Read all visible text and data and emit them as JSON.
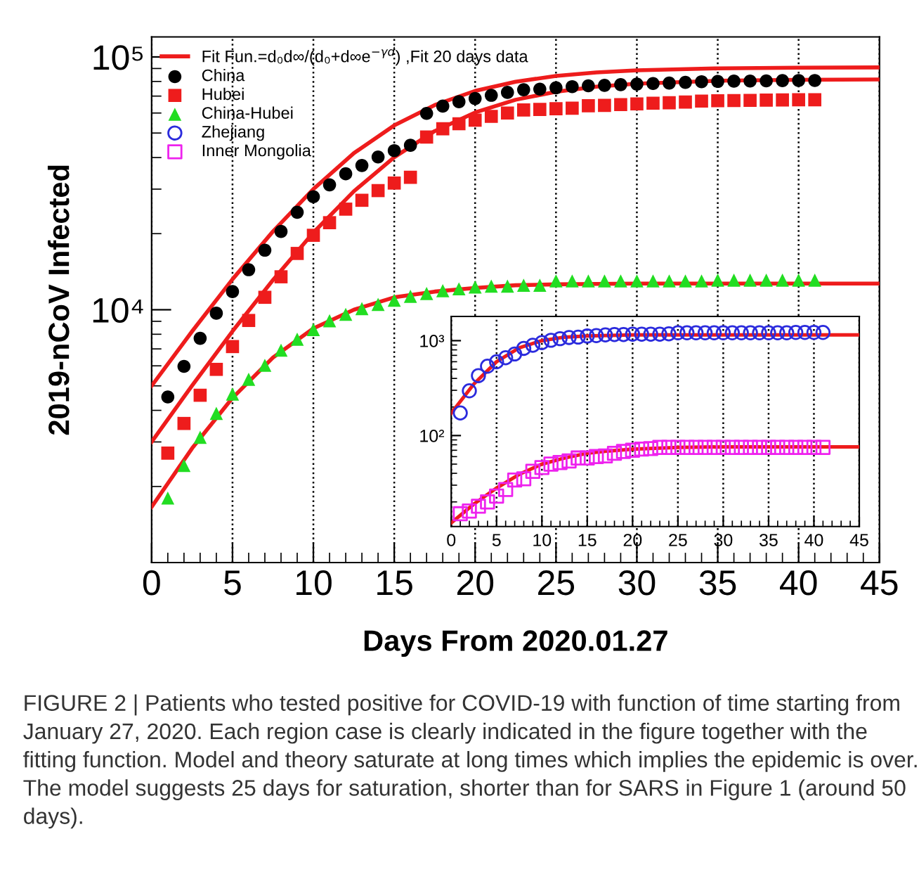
{
  "chart_data": [
    {
      "type": "scatter",
      "xlabel": "Days From 2020.01.27",
      "ylabel": "2019-nCoV Infected",
      "log": "y",
      "xlim": [
        0,
        45
      ],
      "ylim": [
        1000,
        120000
      ],
      "xticks": [
        0,
        5,
        10,
        15,
        20,
        25,
        30,
        35,
        40,
        45
      ],
      "yticks": [
        {
          "value": 10000,
          "label": "10⁴"
        },
        {
          "value": 100000,
          "label": "10⁵"
        }
      ],
      "grid": "x",
      "legend": "top left",
      "x": [
        1,
        2,
        3,
        4,
        5,
        6,
        7,
        8,
        9,
        10,
        11,
        12,
        13,
        14,
        15,
        16,
        17,
        18,
        19,
        20,
        21,
        22,
        23,
        24,
        25,
        26,
        27,
        28,
        29,
        30,
        31,
        32,
        33,
        34,
        35,
        36,
        37,
        38,
        39,
        40,
        41
      ],
      "series": [
        {
          "name": "Fit Fun.=d₀d∞/(d₀+d∞e$^{−γd}$) ,Fit 20 days data",
          "type": "line",
          "color": "#ee1c1c",
          "line_style": "solid",
          "marker": "none",
          "x": [
            0,
            2.5,
            5,
            7.5,
            10,
            12.5,
            15,
            17.5,
            20,
            22.5,
            25,
            27.5,
            30,
            35,
            40,
            45
          ],
          "values": [
            5000,
            8210,
            13200,
            20400,
            30000,
            41600,
            53600,
            64500,
            73400,
            79800,
            84100,
            86800,
            88500,
            90100,
            90700,
            90900
          ]
        },
        {
          "type": "line",
          "color": "#ee1c1c",
          "line_style": "solid",
          "marker": "none",
          "x": [
            0,
            2.5,
            5,
            7.5,
            10,
            12.5,
            15,
            17.5,
            20,
            22.5,
            25,
            27.5,
            30,
            35,
            40,
            45
          ],
          "values": [
            3000,
            5010,
            8220,
            13100,
            20200,
            29400,
            40100,
            50900,
            60300,
            67700,
            72800,
            76300,
            78400,
            80500,
            81200,
            81500
          ]
        },
        {
          "type": "line",
          "color": "#ee1c1c",
          "line_style": "solid",
          "marker": "none",
          "x": [
            0,
            2.5,
            5,
            7.5,
            10,
            12.5,
            15,
            17.5,
            20,
            22.5,
            25,
            27.5,
            30,
            35,
            40,
            45
          ],
          "values": [
            1660,
            2830,
            4480,
            6470,
            8440,
            10000,
            11200,
            11800,
            12200,
            12500,
            12600,
            12650,
            12700,
            12700,
            12700,
            12700
          ]
        },
        {
          "name": "China",
          "color": "#000000",
          "marker": "circle",
          "values": [
            4520,
            5970,
            7710,
            9690,
            11800,
            14400,
            17200,
            20400,
            24300,
            28000,
            31200,
            34500,
            37200,
            40200,
            42600,
            44700,
            59800,
            63900,
            66500,
            68500,
            70500,
            72400,
            74200,
            74600,
            75500,
            76300,
            76900,
            77200,
            77700,
            78100,
            78500,
            78800,
            79300,
            79800,
            80000,
            80200,
            80300,
            80400,
            80600,
            80700,
            80700
          ]
        },
        {
          "name": "Hubei",
          "color": "#ee1c1c",
          "marker": "square",
          "values": [
            2710,
            3550,
            4590,
            5810,
            7150,
            9070,
            11200,
            13500,
            16700,
            19700,
            22100,
            25000,
            27100,
            29600,
            31700,
            33400,
            48200,
            52000,
            54400,
            56200,
            58200,
            60000,
            61700,
            62000,
            62400,
            62700,
            64100,
            64300,
            64800,
            65200,
            65600,
            65900,
            66300,
            66900,
            67100,
            67200,
            67300,
            67500,
            67600,
            67700,
            67700
          ]
        },
        {
          "name": "China-Hubei",
          "color": "#22dd22",
          "marker": "triangle",
          "values": [
            1800,
            2420,
            3130,
            3890,
            4640,
            5310,
            6030,
            6920,
            7650,
            8350,
            9050,
            9590,
            10100,
            10500,
            10900,
            11300,
            11600,
            11900,
            12100,
            12300,
            12400,
            12400,
            12500,
            12500,
            13000,
            13000,
            13000,
            13000,
            13000,
            13000,
            13000,
            13000,
            13000,
            13000,
            13100,
            13100,
            13100,
            13100,
            13100,
            13100,
            13100
          ]
        }
      ],
      "annotations": [
        "FIGURE 2 | Patients who tested positive for COVID-19 with function of time starting from January 27, 2020. Each region case is clearly indicated in the figure together with the fitting function. Model and theory saturate at long times which implies the epidemic is over. The model suggests 25 days for saturation, shorter than for SARS in Figure 1 (around 50 days)."
      ]
    },
    {
      "type": "scatter",
      "log": "y",
      "xlim": [
        0,
        45
      ],
      "ylim": [
        11,
        1800
      ],
      "xticks": [
        0,
        5,
        10,
        15,
        20,
        25,
        30,
        35,
        40,
        45
      ],
      "yticks": [
        {
          "value": 100,
          "label": "10²"
        },
        {
          "value": 1000,
          "label": "10³"
        }
      ],
      "grid": "x",
      "legend": "top left",
      "x": [
        1,
        2,
        3,
        4,
        5,
        6,
        7,
        8,
        9,
        10,
        11,
        12,
        13,
        14,
        15,
        16,
        17,
        18,
        19,
        20,
        21,
        22,
        23,
        24,
        25,
        26,
        27,
        28,
        29,
        30,
        31,
        32,
        33,
        34,
        35,
        36,
        37,
        38,
        39,
        40,
        41
      ],
      "series": [
        {
          "type": "line",
          "color": "#ee1c1c",
          "line_style": "solid",
          "marker": "none",
          "x": [
            0,
            2.5,
            5,
            7.5,
            10,
            12.5,
            15,
            20,
            30,
            45
          ],
          "values": [
            172,
            350,
            600,
            841,
            1000,
            1090,
            1120,
            1150,
            1150,
            1150
          ]
        },
        {
          "type": "line",
          "color": "#ee1c1c",
          "line_style": "solid",
          "marker": "none",
          "x": [
            0,
            2.5,
            5,
            7.5,
            10,
            12.5,
            15,
            17.5,
            20,
            25,
            30,
            45
          ],
          "values": [
            12,
            19,
            28,
            39,
            50,
            58,
            65,
            69,
            72,
            75,
            76,
            76
          ]
        },
        {
          "name": "Zhejiang",
          "color": "#2b2bdd",
          "marker": "circle",
          "values": [
            173,
            296,
            428,
            538,
            599,
            661,
            724,
            829,
            895,
            954,
            1010,
            1050,
            1080,
            1090,
            1120,
            1130,
            1150,
            1160,
            1160,
            1170,
            1170,
            1170,
            1170,
            1180,
            1210,
            1210,
            1210,
            1210,
            1210,
            1210,
            1210,
            1210,
            1210,
            1210,
            1210,
            1210,
            1210,
            1220,
            1220,
            1220,
            1220
          ]
        },
        {
          "name": "Inner Mongolia",
          "color": "#ee22ee",
          "marker": "square",
          "values": [
            15,
            16,
            18,
            20,
            23,
            27,
            34,
            35,
            42,
            46,
            50,
            52,
            54,
            58,
            58,
            60,
            61,
            65,
            68,
            70,
            72,
            73,
            75,
            75,
            75,
            75,
            75,
            75,
            75,
            75,
            75,
            75,
            75,
            75,
            75,
            75,
            75,
            75,
            75,
            75,
            75
          ]
        }
      ]
    }
  ]
}
